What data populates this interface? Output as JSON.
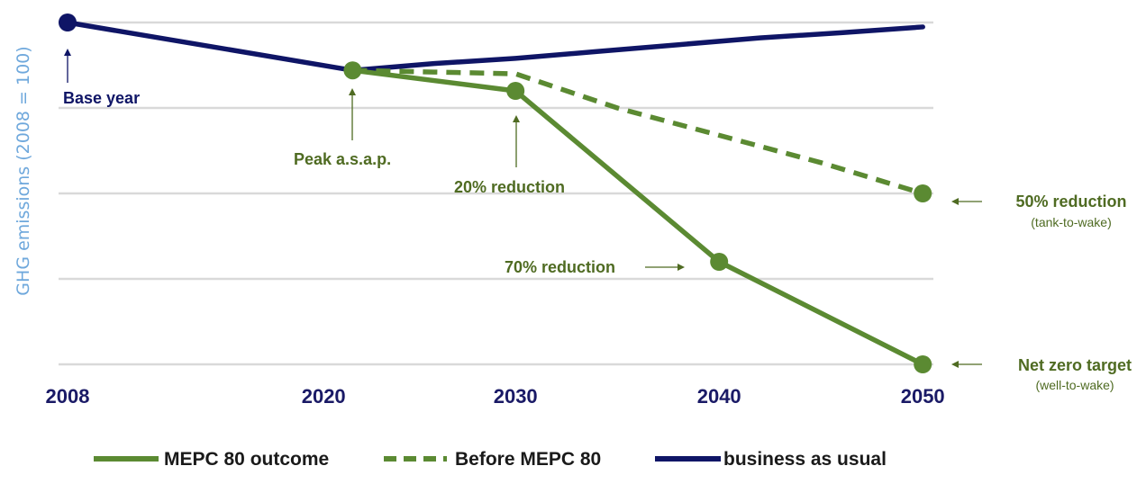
{
  "chart_data": {
    "type": "line",
    "title": "",
    "xlabel": "",
    "ylabel": "GHG emissions (2008 = 100)",
    "ylim": [
      0,
      100
    ],
    "y_gridlines": [
      0,
      25,
      50,
      75,
      100
    ],
    "y_tick_labels_shown": false,
    "grid": true,
    "x_ticks": [
      2008,
      2020,
      2030,
      2040,
      2050
    ],
    "legend_position": "bottom",
    "series": [
      {
        "name": "MEPC 80 outcome",
        "style": "solid",
        "color": "#5b8a32",
        "markers": true,
        "x": [
          2022,
          2030,
          2040,
          2050
        ],
        "y": [
          86,
          80,
          30,
          0
        ]
      },
      {
        "name": "Before MEPC 80",
        "style": "dashed",
        "color": "#5b8a32",
        "markers": true,
        "x": [
          2022,
          2026,
          2030,
          2035,
          2040,
          2045,
          2050
        ],
        "y": [
          86,
          85.5,
          85,
          75,
          67,
          59,
          50
        ],
        "marker_x": [
          2050
        ]
      },
      {
        "name": "business as usual",
        "style": "solid",
        "color": "#0f1566",
        "markers": true,
        "x": [
          2008,
          2022,
          2026,
          2030,
          2034,
          2038,
          2042,
          2046,
          2050
        ],
        "y": [
          100,
          86,
          88,
          89.5,
          91.5,
          93.5,
          95.5,
          97,
          98.7
        ],
        "marker_x": [
          2008
        ]
      }
    ],
    "annotations": [
      {
        "text": "Base year",
        "sub": "",
        "color": "#0f1566"
      },
      {
        "text": "Peak a.s.a.p.",
        "sub": "",
        "color": "#4f6b22"
      },
      {
        "text": "20% reduction",
        "sub": "",
        "color": "#4f6b22"
      },
      {
        "text": "70% reduction",
        "sub": "",
        "color": "#4f6b22"
      },
      {
        "text": "50% reduction",
        "sub": "(tank-to-wake)",
        "color": "#4f6b22"
      },
      {
        "text": "Net zero target",
        "sub": "(well-to-wake)",
        "color": "#4f6b22"
      }
    ]
  }
}
